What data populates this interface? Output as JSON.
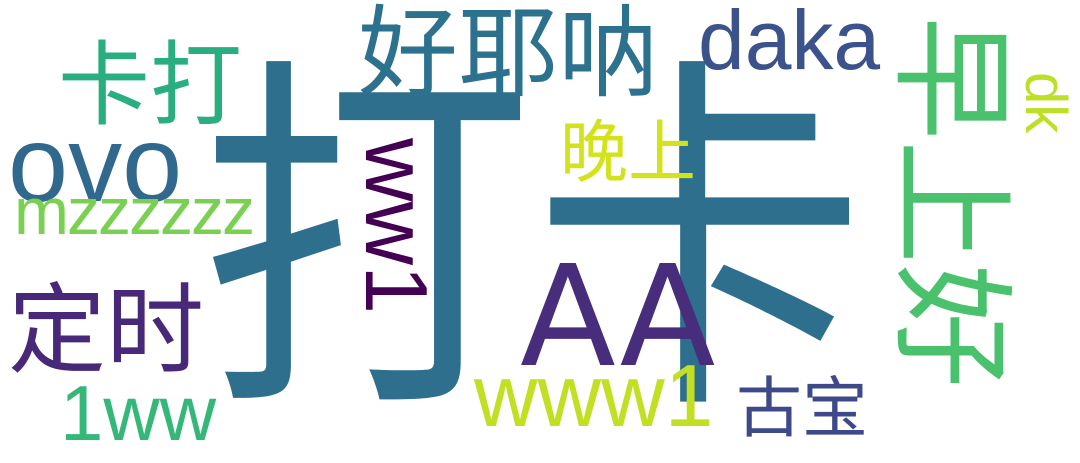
{
  "words": [
    {
      "text": "打卡",
      "color": "#2e6f8e"
    },
    {
      "text": "AA",
      "color": "#472d7b"
    },
    {
      "text": "早上好",
      "color": "#4ac16d"
    },
    {
      "text": "好耶呐",
      "color": "#2c728e"
    },
    {
      "text": "卡打",
      "color": "#29af7f"
    },
    {
      "text": "daka",
      "color": "#3b528b"
    },
    {
      "text": "ovo",
      "color": "#31688e"
    },
    {
      "text": "mzzzzzz",
      "color": "#7ad151"
    },
    {
      "text": "ww1",
      "color": "#440154"
    },
    {
      "text": "晚上",
      "color": "#d2e21b"
    },
    {
      "text": "定时",
      "color": "#482878"
    },
    {
      "text": "1ww",
      "color": "#35b779"
    },
    {
      "text": "www1",
      "color": "#c2df23"
    },
    {
      "text": "古宝",
      "color": "#3e4989"
    },
    {
      "text": "dk",
      "color": "#bddf26"
    }
  ]
}
